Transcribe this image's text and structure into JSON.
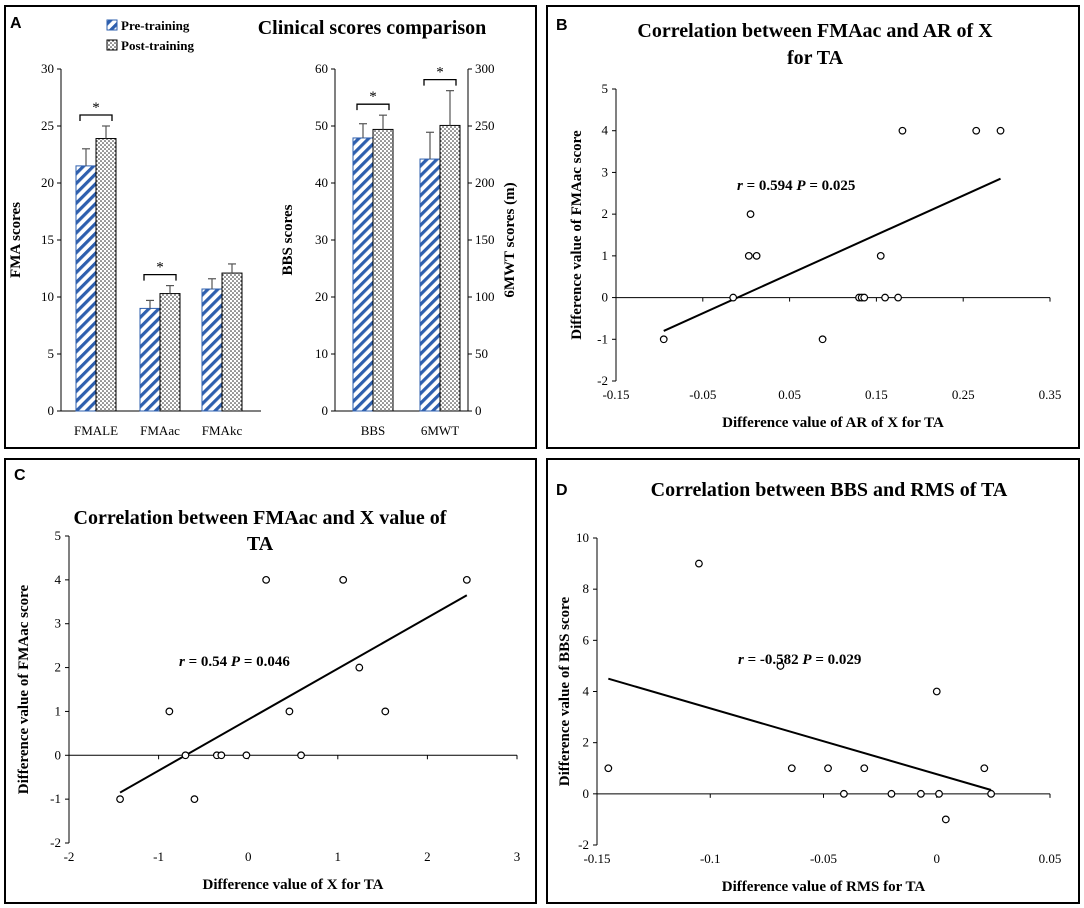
{
  "colors": {
    "pre": "#2e5fae",
    "axis": "#000000",
    "border": "#000000",
    "background": "#ffffff"
  },
  "chart_data": [
    {
      "panel": "A",
      "type": "bar",
      "title": "Clinical scores comparison",
      "legend": [
        "Pre-training",
        "Post-training"
      ],
      "legend_position": "top-left",
      "subplots": [
        {
          "ylabel": "FMA scores",
          "ylim": [
            0,
            30
          ],
          "yticks": [
            "0",
            "5",
            "10",
            "15",
            "20",
            "25",
            "30"
          ],
          "categories": [
            "FMALE",
            "FMAac",
            "FMAkc"
          ],
          "series": [
            {
              "name": "Pre-training",
              "values": [
                21.5,
                9.0,
                10.7
              ],
              "errors": [
                1.5,
                0.7,
                0.9
              ]
            },
            {
              "name": "Post-training",
              "values": [
                23.9,
                10.3,
                12.1
              ],
              "errors": [
                1.1,
                0.7,
                0.8
              ]
            }
          ],
          "significance": [
            {
              "category": "FMALE",
              "label": "*"
            },
            {
              "category": "FMAac",
              "label": "*"
            }
          ]
        },
        {
          "ylabel": "BBS scores",
          "y2label": "6MWT scores (m)",
          "ylim": [
            0,
            60
          ],
          "y2lim": [
            0,
            300
          ],
          "yticks": [
            "0",
            "10",
            "20",
            "30",
            "40",
            "50",
            "60"
          ],
          "y2ticks": [
            "0",
            "50",
            "100",
            "150",
            "200",
            "250",
            "300"
          ],
          "categories": [
            "BBS",
            "6MWT"
          ],
          "series": [
            {
              "name": "Pre-training",
              "values": [
                47.9,
                44.2
              ],
              "errors": [
                2.5,
                4.7
              ]
            },
            {
              "name": "Post-training",
              "values": [
                49.4,
                50.1
              ],
              "errors": [
                2.5,
                6.1
              ]
            }
          ],
          "significance": [
            {
              "category": "BBS",
              "label": "*"
            },
            {
              "category": "6MWT",
              "label": "*"
            }
          ]
        }
      ]
    },
    {
      "panel": "B",
      "type": "scatter",
      "title": [
        "Correlation between FMAac and AR of X",
        "for TA"
      ],
      "xlabel": "Difference value of AR of X for TA",
      "ylabel": "Difference value of FMAac score",
      "xlim": [
        -0.15,
        0.35
      ],
      "ylim": [
        -2,
        5
      ],
      "xticks": [
        "-0.15",
        "-0.05",
        "0.05",
        "0.15",
        "0.25",
        "0.35"
      ],
      "yticks": [
        "-2",
        "-1",
        "0",
        "1",
        "2",
        "3",
        "4",
        "5"
      ],
      "points": [
        [
          -0.095,
          -1
        ],
        [
          -0.015,
          0
        ],
        [
          0.005,
          2
        ],
        [
          0.003,
          1
        ],
        [
          0.012,
          1
        ],
        [
          0.088,
          -1
        ],
        [
          0.13,
          0
        ],
        [
          0.133,
          0
        ],
        [
          0.136,
          0
        ],
        [
          0.155,
          1
        ],
        [
          0.16,
          0
        ],
        [
          0.175,
          0
        ],
        [
          0.18,
          4
        ],
        [
          0.265,
          4
        ],
        [
          0.293,
          4
        ]
      ],
      "fit": {
        "x": [
          -0.095,
          0.293
        ],
        "y": [
          -0.8,
          2.85
        ]
      },
      "stat": {
        "r_label": "r",
        "text": " = 0.594 ",
        "p_label": "P",
        "p_text": " = 0.025"
      }
    },
    {
      "panel": "C",
      "type": "scatter",
      "title": [
        "Correlation between FMAac and X value of",
        "TA"
      ],
      "xlabel": "Difference value of X for TA",
      "ylabel": "Difference value of FMAac score",
      "xlim": [
        -2,
        3
      ],
      "ylim": [
        -2,
        5
      ],
      "xticks": [
        "-2",
        "-1",
        "0",
        "1",
        "2",
        "3"
      ],
      "yticks": [
        "-2",
        "-1",
        "0",
        "1",
        "2",
        "3",
        "4",
        "5"
      ],
      "points": [
        [
          -1.43,
          -1
        ],
        [
          -0.88,
          1
        ],
        [
          -0.7,
          0
        ],
        [
          -0.6,
          -1
        ],
        [
          -0.35,
          0
        ],
        [
          -0.3,
          0
        ],
        [
          -0.02,
          0
        ],
        [
          0.2,
          4
        ],
        [
          0.46,
          1
        ],
        [
          0.59,
          0
        ],
        [
          1.06,
          4
        ],
        [
          1.24,
          2
        ],
        [
          1.53,
          1
        ],
        [
          2.44,
          4
        ]
      ],
      "fit": {
        "x": [
          -1.43,
          2.44
        ],
        "y": [
          -0.85,
          3.65
        ]
      },
      "stat": {
        "r_label": "r",
        "text": " = 0.54 ",
        "p_label": "P",
        "p_text": " = 0.046"
      }
    },
    {
      "panel": "D",
      "type": "scatter",
      "title": [
        "Correlation between BBS and RMS of TA"
      ],
      "xlabel": "Difference value of RMS for TA",
      "ylabel": "Difference value of BBS score",
      "xlim": [
        -0.15,
        0.05
      ],
      "ylim": [
        -2,
        10
      ],
      "xticks": [
        "-0.15",
        "-0.1",
        "-0.05",
        "0",
        "0.05"
      ],
      "yticks": [
        "-2",
        "0",
        "2",
        "4",
        "6",
        "8",
        "10"
      ],
      "points": [
        [
          -0.145,
          1
        ],
        [
          -0.105,
          9
        ],
        [
          -0.069,
          5
        ],
        [
          -0.064,
          1
        ],
        [
          -0.048,
          1
        ],
        [
          -0.041,
          0
        ],
        [
          -0.032,
          1
        ],
        [
          -0.02,
          0
        ],
        [
          -0.007,
          0
        ],
        [
          0.0,
          4
        ],
        [
          0.001,
          0
        ],
        [
          0.004,
          -1
        ],
        [
          0.021,
          1
        ],
        [
          0.024,
          0
        ]
      ],
      "fit": {
        "x": [
          -0.145,
          0.024
        ],
        "y": [
          4.5,
          0.15
        ]
      },
      "stat": {
        "r_label": "r",
        "text": " = -0.582 ",
        "p_label": "P",
        "p_text": " = 0.029"
      }
    }
  ]
}
